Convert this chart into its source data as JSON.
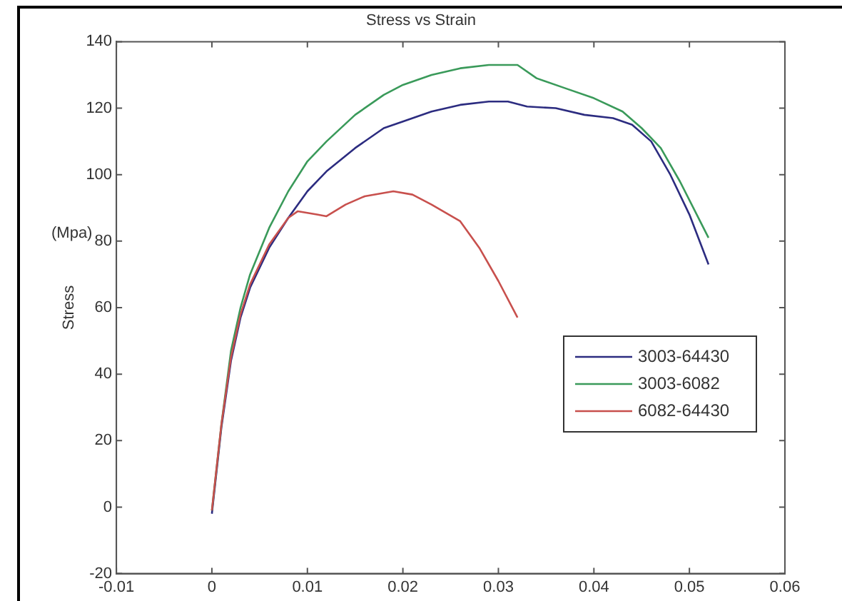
{
  "chart_data": {
    "type": "line",
    "title": "Stress vs Strain",
    "ylabel": "Stress",
    "annotations": [
      "(Mpa)"
    ],
    "xlim": [
      -0.01,
      0.06
    ],
    "xticks": [
      -0.01,
      0,
      0.01,
      0.02,
      0.03,
      0.04,
      0.05,
      0.06
    ],
    "ylim": [
      -20,
      140
    ],
    "yticks": [
      -20,
      0,
      20,
      40,
      60,
      80,
      100,
      120,
      140
    ],
    "grid": false,
    "legend": "right",
    "marker": "none",
    "line_style": "solid",
    "series": [
      {
        "name": "3003-64430",
        "color": "#2c2c80",
        "x": [
          0,
          0.001,
          0.002,
          0.003,
          0.004,
          0.006,
          0.008,
          0.01,
          0.012,
          0.015,
          0.018,
          0.02,
          0.023,
          0.026,
          0.029,
          0.031,
          0.033,
          0.036,
          0.039,
          0.042,
          0.044,
          0.046,
          0.048,
          0.05,
          0.052
        ],
        "values": [
          -2,
          24,
          44,
          57,
          66,
          78,
          87,
          95,
          101,
          108,
          114,
          116,
          119,
          121,
          122,
          122,
          120.5,
          120,
          118,
          117,
          115,
          110,
          100,
          88,
          73
        ]
      },
      {
        "name": "3003-6082",
        "color": "#3a9a5a",
        "x": [
          0,
          0.001,
          0.002,
          0.003,
          0.004,
          0.006,
          0.008,
          0.01,
          0.012,
          0.015,
          0.018,
          0.02,
          0.023,
          0.026,
          0.029,
          0.032,
          0.034,
          0.037,
          0.04,
          0.043,
          0.045,
          0.047,
          0.049,
          0.052
        ],
        "values": [
          -1,
          25,
          47,
          60,
          70,
          84,
          95,
          104,
          110,
          118,
          124,
          127,
          130,
          132,
          133,
          133,
          129,
          126,
          123,
          119,
          114,
          108,
          98,
          81
        ]
      },
      {
        "name": "6082-64430",
        "color": "#c8504d",
        "x": [
          0,
          0.001,
          0.002,
          0.003,
          0.004,
          0.006,
          0.008,
          0.009,
          0.011,
          0.012,
          0.014,
          0.016,
          0.019,
          0.021,
          0.023,
          0.026,
          0.028,
          0.03,
          0.032
        ],
        "values": [
          -1,
          25,
          45,
          58,
          67,
          79,
          87,
          89,
          88,
          87.5,
          91,
          93.5,
          95,
          94,
          91,
          86,
          78,
          68,
          57
        ]
      }
    ]
  }
}
